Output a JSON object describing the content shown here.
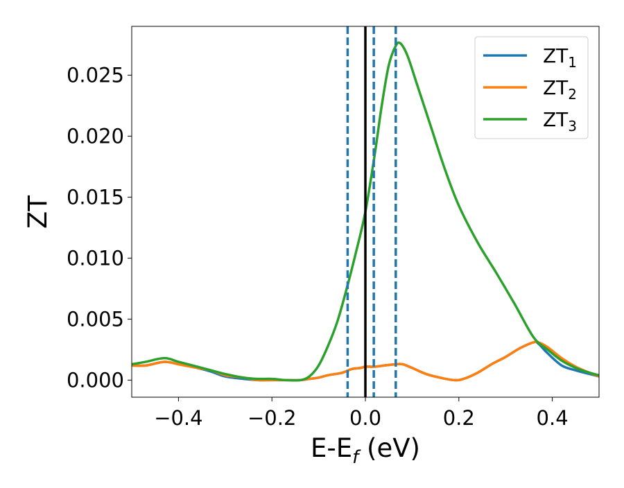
{
  "chart_data": {
    "type": "line",
    "xlabel": "E-E",
    "xlabel_sub": "f",
    "xlabel_unit": " (eV)",
    "ylabel": "ZT",
    "xlim": [
      -0.5,
      0.5
    ],
    "ylim": [
      -0.0014,
      0.029
    ],
    "x_ticks": [
      -0.4,
      -0.2,
      0.0,
      0.2,
      0.4
    ],
    "x_tick_labels": [
      "−0.4",
      "−0.2",
      "0.0",
      "0.2",
      "0.4"
    ],
    "y_ticks": [
      0.0,
      0.005,
      0.01,
      0.015,
      0.02,
      0.025
    ],
    "y_tick_labels": [
      "0.000",
      "0.005",
      "0.010",
      "0.015",
      "0.020",
      "0.025"
    ],
    "grid": false,
    "legend_position": "top-right",
    "fermi_line": {
      "x": 0.0,
      "color": "#000000"
    },
    "dashed_lines": {
      "x": [
        -0.038,
        0.018,
        0.065
      ],
      "color": "#1f77b4"
    },
    "series": [
      {
        "name": "ZT",
        "name_sub": "1",
        "color": "#1f77b4",
        "x": [
          -0.5,
          -0.47,
          -0.43,
          -0.4,
          -0.36,
          -0.33,
          -0.3,
          -0.26,
          -0.23,
          -0.2,
          -0.17,
          -0.14,
          -0.12,
          -0.1,
          -0.08,
          -0.05,
          -0.03,
          -0.01,
          0.0,
          0.02,
          0.04,
          0.065,
          0.08,
          0.1,
          0.13,
          0.16,
          0.19,
          0.21,
          0.24,
          0.27,
          0.3,
          0.33,
          0.36,
          0.37,
          0.39,
          0.42,
          0.45,
          0.48,
          0.5
        ],
        "y": [
          0.0012,
          0.0012,
          0.0015,
          0.0013,
          0.001,
          0.0007,
          0.0003,
          0.0001,
          0.0,
          0.0,
          0.0,
          0.0,
          0.0001,
          0.0002,
          0.0004,
          0.0006,
          0.0009,
          0.001,
          0.0011,
          0.0011,
          0.0012,
          0.0013,
          0.0013,
          0.001,
          0.0005,
          0.0002,
          0.0,
          0.0001,
          0.0006,
          0.0013,
          0.0019,
          0.0026,
          0.0031,
          0.003,
          0.0022,
          0.0012,
          0.0008,
          0.0005,
          0.0003
        ]
      },
      {
        "name": "ZT",
        "name_sub": "2",
        "color": "#ff7f0e",
        "x": [
          -0.5,
          -0.47,
          -0.43,
          -0.4,
          -0.36,
          -0.33,
          -0.3,
          -0.26,
          -0.23,
          -0.2,
          -0.17,
          -0.14,
          -0.12,
          -0.1,
          -0.08,
          -0.05,
          -0.03,
          -0.01,
          0.0,
          0.02,
          0.04,
          0.065,
          0.08,
          0.1,
          0.13,
          0.16,
          0.19,
          0.21,
          0.24,
          0.27,
          0.3,
          0.33,
          0.36,
          0.37,
          0.39,
          0.42,
          0.45,
          0.48,
          0.5
        ],
        "y": [
          0.0012,
          0.0012,
          0.0015,
          0.0013,
          0.001,
          0.0008,
          0.0004,
          0.0002,
          0.0,
          0.0,
          0.0,
          0.0,
          0.0001,
          0.0002,
          0.0004,
          0.0006,
          0.0009,
          0.001,
          0.0011,
          0.0011,
          0.0012,
          0.0013,
          0.0013,
          0.001,
          0.0005,
          0.0002,
          0.0,
          0.0001,
          0.0006,
          0.0013,
          0.0019,
          0.0026,
          0.0031,
          0.0031,
          0.0027,
          0.0018,
          0.0011,
          0.0006,
          0.0003
        ]
      },
      {
        "name": "ZT",
        "name_sub": "3",
        "color": "#2ca02c",
        "x": [
          -0.5,
          -0.47,
          -0.43,
          -0.4,
          -0.36,
          -0.33,
          -0.3,
          -0.26,
          -0.23,
          -0.2,
          -0.17,
          -0.14,
          -0.12,
          -0.1,
          -0.08,
          -0.06,
          -0.04,
          -0.02,
          0.0,
          0.02,
          0.035,
          0.05,
          0.065,
          0.075,
          0.09,
          0.11,
          0.14,
          0.17,
          0.2,
          0.24,
          0.28,
          0.32,
          0.36,
          0.39,
          0.42,
          0.45,
          0.48,
          0.5
        ],
        "y": [
          0.0013,
          0.0015,
          0.0018,
          0.0015,
          0.0011,
          0.0008,
          0.0005,
          0.0002,
          0.0001,
          0.0001,
          0.0,
          0.0,
          0.0003,
          0.0012,
          0.0028,
          0.0048,
          0.0075,
          0.0105,
          0.0138,
          0.0185,
          0.0225,
          0.0258,
          0.0274,
          0.0276,
          0.0266,
          0.0243,
          0.0208,
          0.0173,
          0.0143,
          0.0113,
          0.0088,
          0.0062,
          0.0035,
          0.0025,
          0.0016,
          0.001,
          0.0006,
          0.0004
        ]
      }
    ]
  }
}
